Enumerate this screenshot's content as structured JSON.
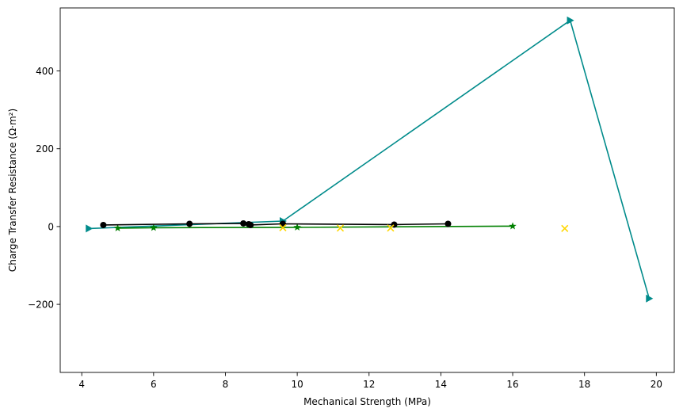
{
  "chart_data": {
    "type": "line",
    "title": "",
    "xlabel": "Mechanical Strength (MPa)",
    "ylabel": "Charge Transfer Resistance (Ω·m²)",
    "xlim": [
      3.4,
      20.5
    ],
    "ylim": [
      -375,
      562
    ],
    "xticks": [
      4,
      6,
      8,
      10,
      12,
      14,
      16,
      18,
      20
    ],
    "yticks": [
      -200,
      0,
      200,
      400
    ],
    "grid": false,
    "legend": "none",
    "series": [
      {
        "style": "line",
        "color": "#008b8b",
        "marker": "triangle-right",
        "points": [
          [
            4.2,
            -5
          ],
          [
            9.6,
            14
          ],
          [
            17.6,
            530
          ],
          [
            19.8,
            -185
          ]
        ]
      },
      {
        "style": "line",
        "color": "#008000",
        "marker": "star",
        "points": [
          [
            5.0,
            -4
          ],
          [
            6.0,
            -3
          ],
          [
            10.0,
            -2
          ],
          [
            16.0,
            1
          ]
        ]
      },
      {
        "style": "line",
        "color": "#000000",
        "marker": "circle",
        "points": [
          [
            4.6,
            4
          ],
          [
            7.0,
            7
          ],
          [
            8.5,
            8
          ],
          [
            8.65,
            6
          ],
          [
            8.7,
            4
          ],
          [
            9.6,
            7
          ],
          [
            12.7,
            5
          ],
          [
            14.2,
            7
          ]
        ]
      },
      {
        "style": "scatter",
        "color": "#ffd700",
        "marker": "x",
        "points": [
          [
            9.6,
            -3
          ],
          [
            11.2,
            -4
          ],
          [
            12.6,
            -4
          ],
          [
            17.45,
            -5
          ]
        ]
      }
    ]
  }
}
